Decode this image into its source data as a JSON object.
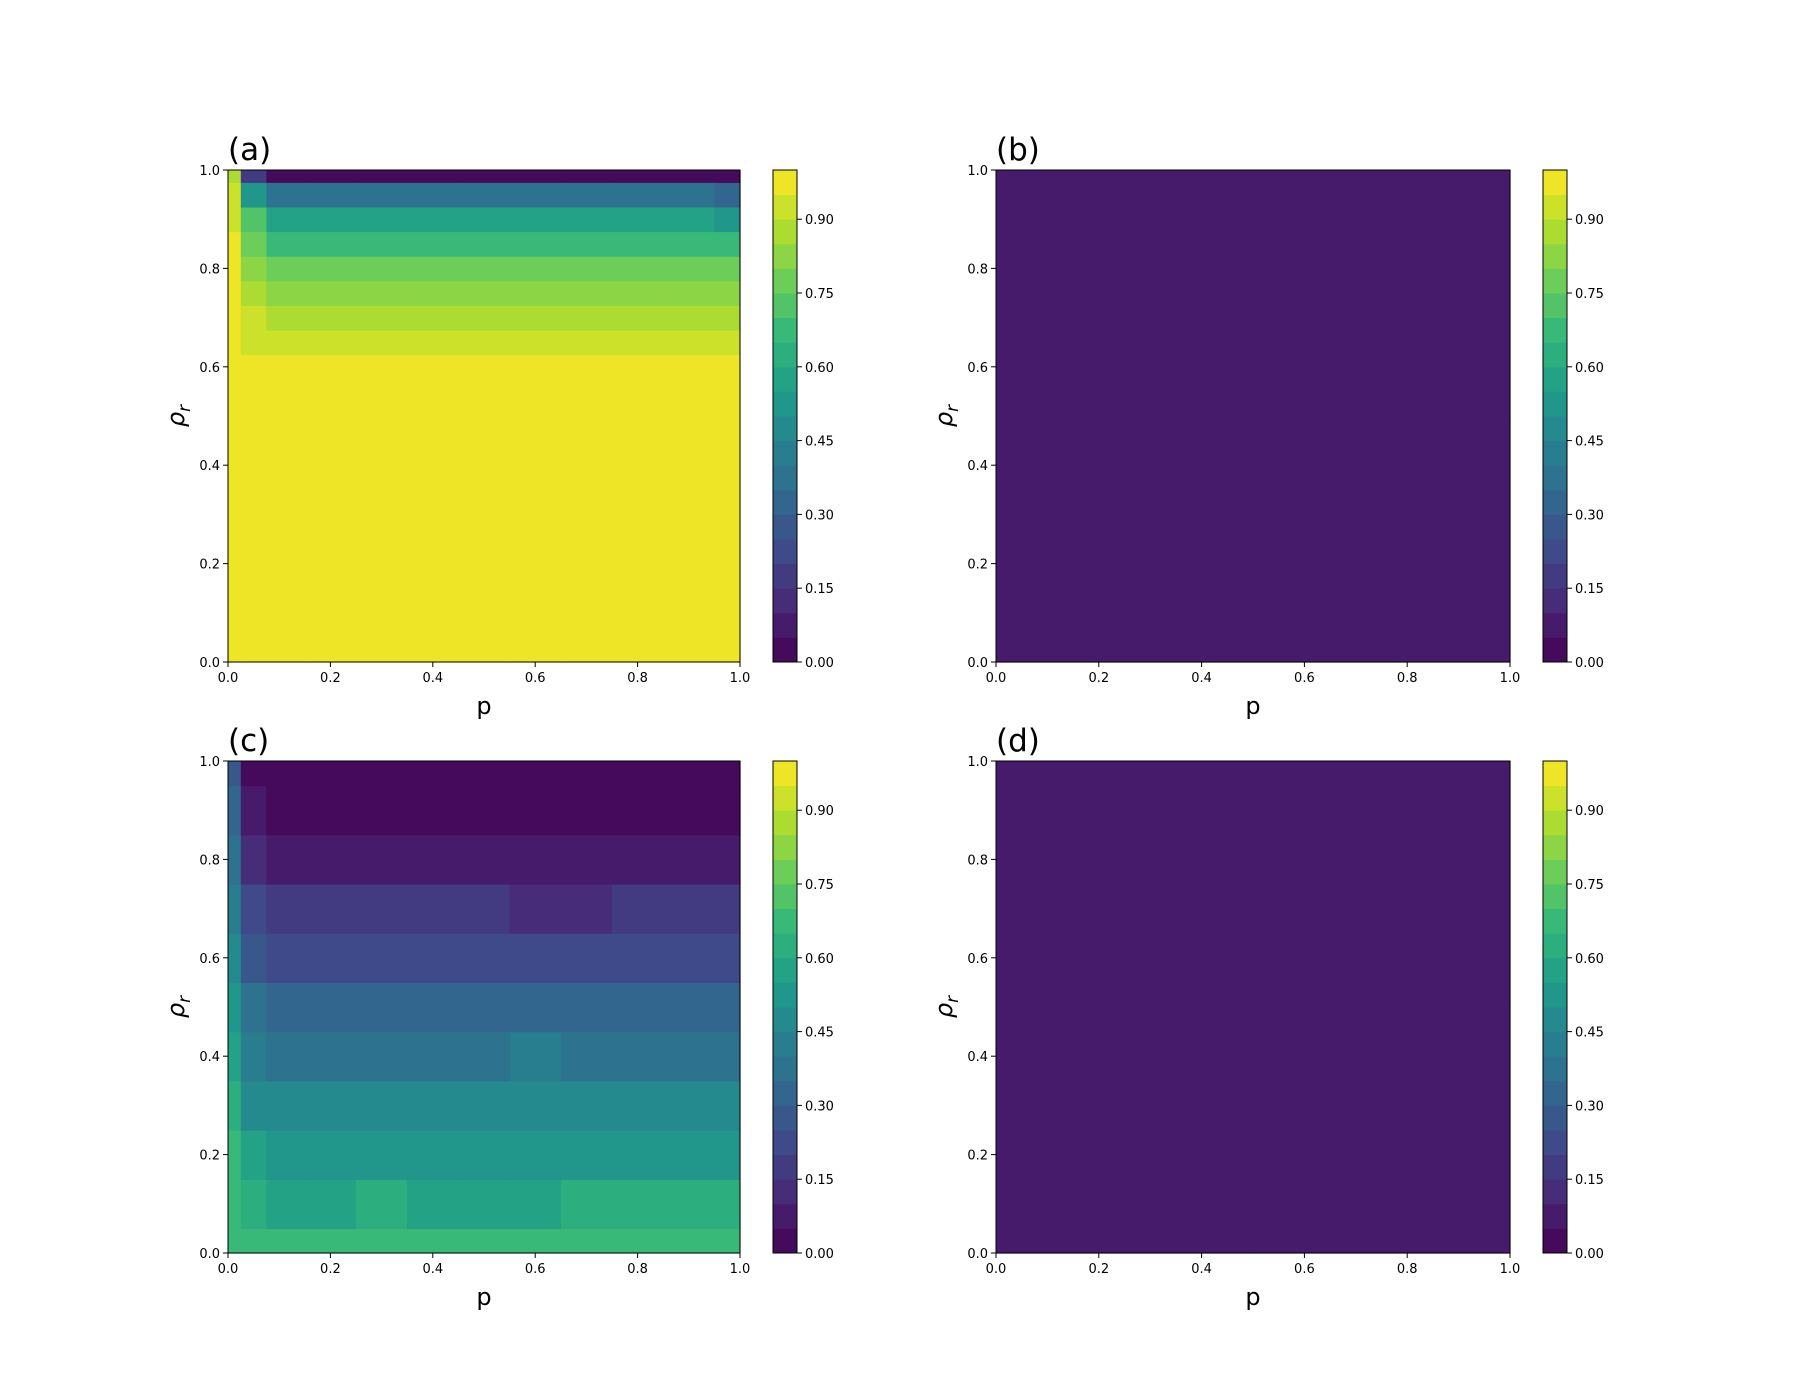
{
  "chart_data": [
    {
      "type": "contour",
      "panel_label": "(a)",
      "xlabel": "p",
      "ylabel": "ρ",
      "ylabel_sub": "r",
      "colormap": "viridis",
      "x": [
        0,
        0.05,
        0.1,
        0.2,
        0.3,
        0.4,
        0.5,
        0.6,
        0.7,
        0.8,
        0.9,
        1.0
      ],
      "y": [
        0,
        0.1,
        0.2,
        0.3,
        0.4,
        0.5,
        0.6,
        0.65,
        0.7,
        0.75,
        0.8,
        0.85,
        0.9,
        0.95,
        1.0
      ],
      "z": [
        [
          0.97,
          0.97,
          0.97,
          0.97,
          0.97,
          0.97,
          0.97,
          0.97,
          0.97,
          0.97,
          0.97,
          0.97
        ],
        [
          0.97,
          0.97,
          0.97,
          0.97,
          0.97,
          0.97,
          0.97,
          0.97,
          0.97,
          0.97,
          0.97,
          0.97
        ],
        [
          0.97,
          0.97,
          0.97,
          0.97,
          0.97,
          0.97,
          0.97,
          0.97,
          0.97,
          0.97,
          0.97,
          0.97
        ],
        [
          0.97,
          0.97,
          0.97,
          0.97,
          0.97,
          0.97,
          0.97,
          0.97,
          0.97,
          0.97,
          0.97,
          0.97
        ],
        [
          0.97,
          0.97,
          0.97,
          0.97,
          0.97,
          0.97,
          0.97,
          0.97,
          0.97,
          0.97,
          0.97,
          0.97
        ],
        [
          0.97,
          0.97,
          0.97,
          0.97,
          0.97,
          0.97,
          0.97,
          0.97,
          0.97,
          0.97,
          0.97,
          0.97
        ],
        [
          0.97,
          0.96,
          0.96,
          0.96,
          0.96,
          0.96,
          0.96,
          0.96,
          0.96,
          0.96,
          0.96,
          0.96
        ],
        [
          0.97,
          0.93,
          0.92,
          0.92,
          0.92,
          0.93,
          0.92,
          0.92,
          0.92,
          0.91,
          0.92,
          0.92
        ],
        [
          0.97,
          0.91,
          0.88,
          0.88,
          0.87,
          0.88,
          0.87,
          0.88,
          0.87,
          0.88,
          0.87,
          0.87
        ],
        [
          0.97,
          0.88,
          0.84,
          0.83,
          0.84,
          0.83,
          0.84,
          0.82,
          0.84,
          0.83,
          0.83,
          0.82
        ],
        [
          0.97,
          0.85,
          0.78,
          0.77,
          0.76,
          0.77,
          0.76,
          0.77,
          0.76,
          0.77,
          0.77,
          0.76
        ],
        [
          0.96,
          0.8,
          0.7,
          0.69,
          0.68,
          0.69,
          0.68,
          0.69,
          0.7,
          0.69,
          0.69,
          0.67
        ],
        [
          0.95,
          0.72,
          0.58,
          0.57,
          0.56,
          0.57,
          0.56,
          0.57,
          0.56,
          0.57,
          0.56,
          0.54
        ],
        [
          0.93,
          0.55,
          0.38,
          0.37,
          0.36,
          0.37,
          0.36,
          0.37,
          0.36,
          0.37,
          0.38,
          0.34
        ],
        [
          0.9,
          0.2,
          0.04,
          0.03,
          0.03,
          0.03,
          0.03,
          0.03,
          0.03,
          0.03,
          0.03,
          0.03
        ]
      ],
      "xlim": [
        0,
        1.0
      ],
      "ylim": [
        0,
        1.0
      ],
      "xticks": [
        {
          "value": 0,
          "label": "0.0"
        },
        {
          "value": 0.2,
          "label": "0.2"
        },
        {
          "value": 0.4,
          "label": "0.4"
        },
        {
          "value": 0.6,
          "label": "0.6"
        },
        {
          "value": 0.8,
          "label": "0.8"
        },
        {
          "value": 1.0,
          "label": "1.0"
        }
      ],
      "yticks": [
        {
          "value": 0,
          "label": "0.0"
        },
        {
          "value": 0.2,
          "label": "0.2"
        },
        {
          "value": 0.4,
          "label": "0.4"
        },
        {
          "value": 0.6,
          "label": "0.6"
        },
        {
          "value": 0.8,
          "label": "0.8"
        },
        {
          "value": 1.0,
          "label": "1.0"
        }
      ],
      "levels": [
        0,
        0.05,
        0.1,
        0.15,
        0.2,
        0.25,
        0.3,
        0.35,
        0.4,
        0.45,
        0.5,
        0.55,
        0.6,
        0.65,
        0.7,
        0.75,
        0.8,
        0.85,
        0.9,
        0.95,
        1.0
      ],
      "cticks": [
        {
          "value": 0,
          "label": "0.00"
        },
        {
          "value": 0.15,
          "label": "0.15"
        },
        {
          "value": 0.3,
          "label": "0.30"
        },
        {
          "value": 0.45,
          "label": "0.45"
        },
        {
          "value": 0.6,
          "label": "0.60"
        },
        {
          "value": 0.75,
          "label": "0.75"
        },
        {
          "value": 0.9,
          "label": "0.90"
        }
      ]
    },
    {
      "type": "contour",
      "panel_label": "(b)",
      "xlabel": "p",
      "ylabel": "ρ",
      "ylabel_sub": "r",
      "colormap": "viridis",
      "x": [
        0,
        1.0
      ],
      "y": [
        0,
        1.0
      ],
      "z": [
        [
          0.06,
          0.06
        ],
        [
          0.06,
          0.06
        ]
      ],
      "xlim": [
        0,
        1.0
      ],
      "ylim": [
        0,
        1.0
      ],
      "xticks": [
        {
          "value": 0,
          "label": "0.0"
        },
        {
          "value": 0.2,
          "label": "0.2"
        },
        {
          "value": 0.4,
          "label": "0.4"
        },
        {
          "value": 0.6,
          "label": "0.6"
        },
        {
          "value": 0.8,
          "label": "0.8"
        },
        {
          "value": 1.0,
          "label": "1.0"
        }
      ],
      "yticks": [
        {
          "value": 0,
          "label": "0.0"
        },
        {
          "value": 0.2,
          "label": "0.2"
        },
        {
          "value": 0.4,
          "label": "0.4"
        },
        {
          "value": 0.6,
          "label": "0.6"
        },
        {
          "value": 0.8,
          "label": "0.8"
        },
        {
          "value": 1.0,
          "label": "1.0"
        }
      ],
      "levels": [
        0,
        0.05,
        0.1,
        0.15,
        0.2,
        0.25,
        0.3,
        0.35,
        0.4,
        0.45,
        0.5,
        0.55,
        0.6,
        0.65,
        0.7,
        0.75,
        0.8,
        0.85,
        0.9,
        0.95,
        1.0
      ],
      "cticks": [
        {
          "value": 0,
          "label": "0.00"
        },
        {
          "value": 0.15,
          "label": "0.15"
        },
        {
          "value": 0.3,
          "label": "0.30"
        },
        {
          "value": 0.45,
          "label": "0.45"
        },
        {
          "value": 0.6,
          "label": "0.60"
        },
        {
          "value": 0.75,
          "label": "0.75"
        },
        {
          "value": 0.9,
          "label": "0.90"
        }
      ]
    },
    {
      "type": "contour",
      "panel_label": "(c)",
      "xlabel": "p",
      "ylabel": "ρ",
      "ylabel_sub": "r",
      "colormap": "viridis",
      "x": [
        0,
        0.05,
        0.1,
        0.2,
        0.3,
        0.4,
        0.5,
        0.6,
        0.7,
        0.8,
        0.9,
        1.0
      ],
      "y": [
        0,
        0.1,
        0.2,
        0.3,
        0.4,
        0.5,
        0.6,
        0.7,
        0.8,
        0.9,
        1.0
      ],
      "z": [
        [
          0.7,
          0.67,
          0.66,
          0.66,
          0.67,
          0.66,
          0.67,
          0.66,
          0.67,
          0.66,
          0.67,
          0.66
        ],
        [
          0.7,
          0.62,
          0.6,
          0.6,
          0.61,
          0.6,
          0.6,
          0.59,
          0.61,
          0.62,
          0.61,
          0.62
        ],
        [
          0.68,
          0.57,
          0.53,
          0.54,
          0.53,
          0.55,
          0.53,
          0.54,
          0.53,
          0.52,
          0.53,
          0.52
        ],
        [
          0.64,
          0.5,
          0.46,
          0.47,
          0.46,
          0.46,
          0.47,
          0.46,
          0.49,
          0.46,
          0.47,
          0.46
        ],
        [
          0.6,
          0.44,
          0.4,
          0.4,
          0.39,
          0.4,
          0.4,
          0.41,
          0.39,
          0.39,
          0.4,
          0.4
        ],
        [
          0.55,
          0.37,
          0.33,
          0.32,
          0.32,
          0.33,
          0.32,
          0.33,
          0.32,
          0.31,
          0.32,
          0.33
        ],
        [
          0.5,
          0.3,
          0.25,
          0.25,
          0.24,
          0.25,
          0.24,
          0.24,
          0.24,
          0.25,
          0.24,
          0.24
        ],
        [
          0.45,
          0.22,
          0.17,
          0.16,
          0.17,
          0.16,
          0.16,
          0.15,
          0.15,
          0.16,
          0.16,
          0.16
        ],
        [
          0.4,
          0.15,
          0.1,
          0.09,
          0.1,
          0.09,
          0.08,
          0.07,
          0.07,
          0.07,
          0.06,
          0.06
        ],
        [
          0.35,
          0.08,
          0.05,
          0.04,
          0.03,
          0.03,
          0.03,
          0.03,
          0.03,
          0.03,
          0.03,
          0.03
        ],
        [
          0.3,
          0.04,
          0.03,
          0.02,
          0.02,
          0.02,
          0.02,
          0.02,
          0.02,
          0.02,
          0.02,
          0.02
        ]
      ],
      "xlim": [
        0,
        1.0
      ],
      "ylim": [
        0,
        1.0
      ],
      "xticks": [
        {
          "value": 0,
          "label": "0.0"
        },
        {
          "value": 0.2,
          "label": "0.2"
        },
        {
          "value": 0.4,
          "label": "0.4"
        },
        {
          "value": 0.6,
          "label": "0.6"
        },
        {
          "value": 0.8,
          "label": "0.8"
        },
        {
          "value": 1.0,
          "label": "1.0"
        }
      ],
      "yticks": [
        {
          "value": 0,
          "label": "0.0"
        },
        {
          "value": 0.2,
          "label": "0.2"
        },
        {
          "value": 0.4,
          "label": "0.4"
        },
        {
          "value": 0.6,
          "label": "0.6"
        },
        {
          "value": 0.8,
          "label": "0.8"
        },
        {
          "value": 1.0,
          "label": "1.0"
        }
      ],
      "levels": [
        0,
        0.05,
        0.1,
        0.15,
        0.2,
        0.25,
        0.3,
        0.35,
        0.4,
        0.45,
        0.5,
        0.55,
        0.6,
        0.65,
        0.7,
        0.75,
        0.8,
        0.85,
        0.9,
        0.95,
        1.0
      ],
      "cticks": [
        {
          "value": 0,
          "label": "0.00"
        },
        {
          "value": 0.15,
          "label": "0.15"
        },
        {
          "value": 0.3,
          "label": "0.30"
        },
        {
          "value": 0.45,
          "label": "0.45"
        },
        {
          "value": 0.6,
          "label": "0.60"
        },
        {
          "value": 0.75,
          "label": "0.75"
        },
        {
          "value": 0.9,
          "label": "0.90"
        }
      ]
    },
    {
      "type": "contour",
      "panel_label": "(d)",
      "xlabel": "p",
      "ylabel": "ρ",
      "ylabel_sub": "r",
      "colormap": "viridis",
      "x": [
        0,
        1.0
      ],
      "y": [
        0,
        1.0
      ],
      "z": [
        [
          0.06,
          0.06
        ],
        [
          0.06,
          0.06
        ]
      ],
      "xlim": [
        0,
        1.0
      ],
      "ylim": [
        0,
        1.0
      ],
      "xticks": [
        {
          "value": 0,
          "label": "0.0"
        },
        {
          "value": 0.2,
          "label": "0.2"
        },
        {
          "value": 0.4,
          "label": "0.4"
        },
        {
          "value": 0.6,
          "label": "0.6"
        },
        {
          "value": 0.8,
          "label": "0.8"
        },
        {
          "value": 1.0,
          "label": "1.0"
        }
      ],
      "yticks": [
        {
          "value": 0,
          "label": "0.0"
        },
        {
          "value": 0.2,
          "label": "0.2"
        },
        {
          "value": 0.4,
          "label": "0.4"
        },
        {
          "value": 0.6,
          "label": "0.6"
        },
        {
          "value": 0.8,
          "label": "0.8"
        },
        {
          "value": 1.0,
          "label": "1.0"
        }
      ],
      "levels": [
        0,
        0.05,
        0.1,
        0.15,
        0.2,
        0.25,
        0.3,
        0.35,
        0.4,
        0.45,
        0.5,
        0.55,
        0.6,
        0.65,
        0.7,
        0.75,
        0.8,
        0.85,
        0.9,
        0.95,
        1.0
      ],
      "cticks": [
        {
          "value": 0,
          "label": "0.00"
        },
        {
          "value": 0.15,
          "label": "0.15"
        },
        {
          "value": 0.3,
          "label": "0.30"
        },
        {
          "value": 0.45,
          "label": "0.45"
        },
        {
          "value": 0.6,
          "label": "0.60"
        },
        {
          "value": 0.75,
          "label": "0.75"
        },
        {
          "value": 0.9,
          "label": "0.90"
        }
      ]
    }
  ]
}
